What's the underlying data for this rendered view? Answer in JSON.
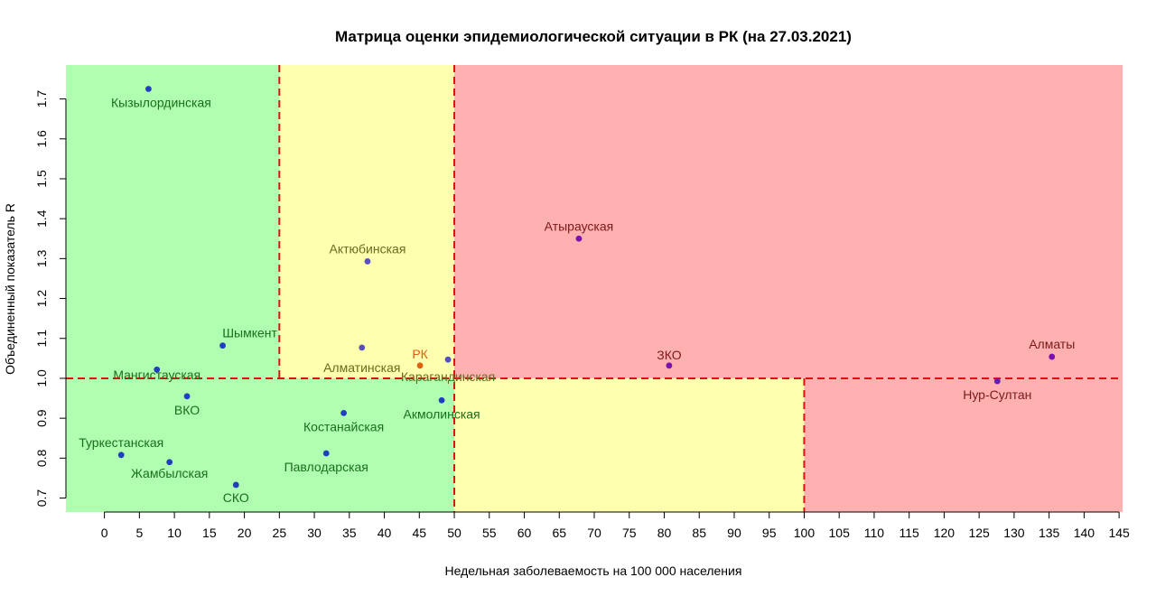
{
  "chart_data": {
    "type": "scatter",
    "title": "Матрица оценки эпидемиологической ситуации в РК (на 27.03.2021)",
    "xlabel": "Недельная заболеваемость на 100 000 населения",
    "ylabel": "Объединенный показатель R",
    "xlim": [
      -5.5,
      145.5
    ],
    "ylim": [
      0.665,
      1.785
    ],
    "x_ticks": [
      0,
      5,
      10,
      15,
      20,
      25,
      30,
      35,
      40,
      45,
      50,
      55,
      60,
      65,
      70,
      75,
      80,
      85,
      90,
      95,
      100,
      105,
      110,
      115,
      120,
      125,
      130,
      135,
      140,
      145
    ],
    "y_ticks": [
      0.7,
      0.8,
      0.9,
      1.0,
      1.1,
      1.2,
      1.3,
      1.4,
      1.5,
      1.6,
      1.7
    ],
    "grid": false,
    "thresholds": {
      "x": [
        25,
        50,
        100
      ],
      "y": 1.0
    },
    "zone_colors": {
      "green": "#b0ffb0",
      "yellow": "#ffffb0",
      "red": "#ffb0b0"
    },
    "threshold_color": "#e01010",
    "points": [
      {
        "label": "Кызылординская",
        "x": 6.3,
        "y": 1.725,
        "label_color": "#1a6e1a",
        "point_color": "#1f3fc0"
      },
      {
        "label": "Шымкент",
        "x": 16.9,
        "y": 1.082,
        "label_color": "#1a6e1a",
        "point_color": "#1f3fc0"
      },
      {
        "label": "Мангистауская",
        "x": 7.5,
        "y": 1.022,
        "label_color": "#1a6e1a",
        "point_color": "#1f3fc0"
      },
      {
        "label": "ВКО",
        "x": 11.8,
        "y": 0.955,
        "label_color": "#1a6e1a",
        "point_color": "#1f3fc0"
      },
      {
        "label": "Туркестанская",
        "x": 2.4,
        "y": 0.808,
        "label_color": "#1a6e1a",
        "point_color": "#1f3fc0"
      },
      {
        "label": "Жамбылская",
        "x": 9.3,
        "y": 0.79,
        "label_color": "#1a6e1a",
        "point_color": "#1f3fc0"
      },
      {
        "label": "СКО",
        "x": 18.8,
        "y": 0.733,
        "label_color": "#1a6e1a",
        "point_color": "#1f3fc0"
      },
      {
        "label": "Актюбинская",
        "x": 37.6,
        "y": 1.293,
        "label_color": "#6b6b20",
        "point_color": "#5a4fc0"
      },
      {
        "label": "Алматинская",
        "x": 36.8,
        "y": 1.077,
        "label_color": "#6b6b20",
        "point_color": "#5a4fc0"
      },
      {
        "label": "РК",
        "x": 45.1,
        "y": 1.032,
        "label_color": "#e06010",
        "point_color": "#e06010"
      },
      {
        "label": "Карагандинская",
        "x": 49.1,
        "y": 1.047,
        "label_color": "#6b6b20",
        "point_color": "#5a4fc0"
      },
      {
        "label": "Костанайская",
        "x": 34.2,
        "y": 0.913,
        "label_color": "#1a6e1a",
        "point_color": "#1f3fc0"
      },
      {
        "label": "Акмолинская",
        "x": 48.2,
        "y": 0.945,
        "label_color": "#1a6e1a",
        "point_color": "#1f3fc0"
      },
      {
        "label": "Павлодарская",
        "x": 31.7,
        "y": 0.812,
        "label_color": "#1a6e1a",
        "point_color": "#1f3fc0"
      },
      {
        "label": "Атырауская",
        "x": 67.8,
        "y": 1.35,
        "label_color": "#7a1a1a",
        "point_color": "#7a10b0"
      },
      {
        "label": "ЗКО",
        "x": 80.7,
        "y": 1.032,
        "label_color": "#7a1a1a",
        "point_color": "#7a10b0"
      },
      {
        "label": "Алматы",
        "x": 135.4,
        "y": 1.054,
        "label_color": "#7a1a1a",
        "point_color": "#7a10b0"
      },
      {
        "label": "Нур-Султан",
        "x": 127.6,
        "y": 0.993,
        "label_color": "#7a1a1a",
        "point_color": "#7a10b0"
      }
    ]
  }
}
